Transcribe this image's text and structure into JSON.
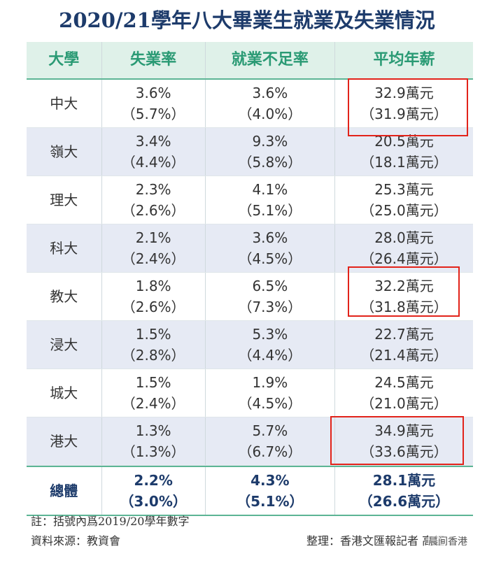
{
  "title": "2020/21學年八大畢業生就業及失業情況",
  "table": {
    "header": [
      "大學",
      "失業率",
      "就業不足率",
      "平均年薪"
    ],
    "rows": [
      [
        "中大",
        "3.6%",
        "（5.7%）",
        "3.6%",
        "（4.0%）",
        "32.9萬元",
        "（31.9萬元）"
      ],
      [
        "嶺大",
        "3.4%",
        "（4.4%）",
        "9.3%",
        "（5.8%）",
        "20.5萬元",
        "（18.1萬元）"
      ],
      [
        "理大",
        "2.3%",
        "（2.6%）",
        "4.1%",
        "（5.1%）",
        "25.3萬元",
        "（25.0萬元）"
      ],
      [
        "科大",
        "2.1%",
        "（2.4%）",
        "3.6%",
        "（4.5%）",
        "28.0萬元",
        "（26.4萬元）"
      ],
      [
        "教大",
        "1.8%",
        "（2.6%）",
        "6.5%",
        "（7.3%）",
        "32.2萬元",
        "（31.8萬元）"
      ],
      [
        "浸大",
        "1.5%",
        "（2.8%）",
        "5.3%",
        "（4.4%）",
        "22.7萬元",
        "（21.4萬元）"
      ],
      [
        "城大",
        "1.5%",
        "（2.4%）",
        "1.9%",
        "（4.5%）",
        "24.5萬元",
        "（21.0萬元）"
      ],
      [
        "港大",
        "1.3%",
        "（1.3%）",
        "5.7%",
        "（6.7%）",
        "34.9萬元",
        "（33.6萬元）"
      ],
      [
        "總體",
        "2.2%",
        "（3.0%）",
        "4.3%",
        "（5.1%）",
        "28.1萬元",
        "（26.6萬元）"
      ]
    ]
  },
  "notes": {
    "note": "註：括號內爲2019/20學年數字",
    "source": "資料來源：教資會",
    "compiled": "整理：香港文匯報記者 高鈺",
    "watermark": "晨间香港"
  }
}
